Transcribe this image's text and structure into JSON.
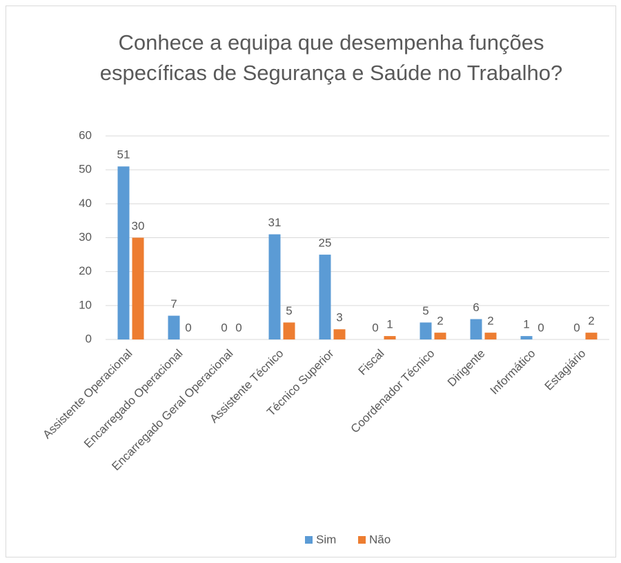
{
  "chart_data": {
    "type": "bar",
    "title": "Conhece a equipa que desempenha funções específicas de Segurança e Saúde no Trabalho?",
    "categories": [
      "Assistente Operacional",
      "Encarregado Operacional",
      "Encarregado Geral Operacional",
      "Assistente Técnico",
      "Técnico Superior",
      "Fiscal",
      "Coordenador Técnico",
      "Dirigente",
      "Informático",
      "Estagiário"
    ],
    "series": [
      {
        "name": "Sim",
        "color": "#5b9bd5",
        "values": [
          51,
          7,
          0,
          31,
          25,
          0,
          5,
          6,
          1,
          0
        ]
      },
      {
        "name": "Não",
        "color": "#ed7d31",
        "values": [
          30,
          0,
          0,
          5,
          3,
          1,
          2,
          2,
          0,
          2
        ]
      }
    ],
    "ylim": [
      0,
      60
    ],
    "yticks": [
      0,
      10,
      20,
      30,
      40,
      50,
      60
    ],
    "grid": true,
    "legend": "bottom"
  }
}
